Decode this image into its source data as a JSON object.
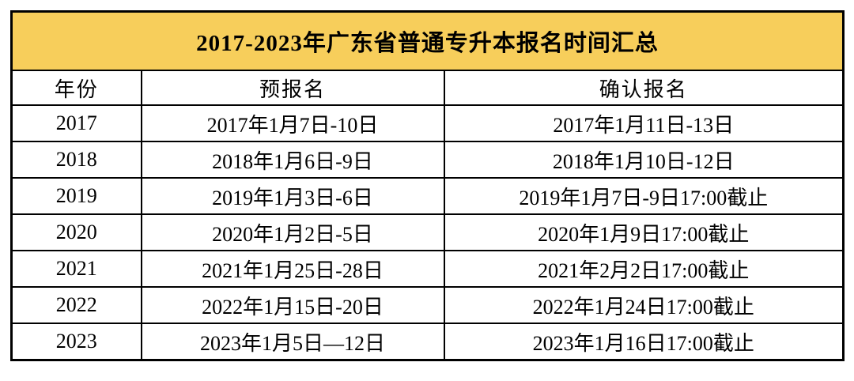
{
  "title": "2017-2023年广东省普通专升本报名时间汇总",
  "colors": {
    "title_background": "#F7CE5B",
    "border": "#000000",
    "text": "#000000",
    "page_background": "#FFFFFF"
  },
  "table": {
    "columns": [
      "年份",
      "预报名",
      "确认报名"
    ],
    "rows": [
      {
        "year": "2017",
        "pre": "2017年1月7日-10日",
        "confirm": "2017年1月11日-13日"
      },
      {
        "year": "2018",
        "pre": "2018年1月6日-9日",
        "confirm": "2018年1月10日-12日"
      },
      {
        "year": "2019",
        "pre": "2019年1月3日-6日",
        "confirm": "2019年1月7日-9日17:00截止"
      },
      {
        "year": "2020",
        "pre": "2020年1月2日-5日",
        "confirm": "2020年1月9日17:00截止"
      },
      {
        "year": "2021",
        "pre": "2021年1月25日-28日",
        "confirm": "2021年2月2日17:00截止"
      },
      {
        "year": "2022",
        "pre": "2022年1月15日-20日",
        "confirm": "2022年1月24日17:00截止"
      },
      {
        "year": "2023",
        "pre": "2023年1月5日—12日",
        "confirm": "2023年1月16日17:00截止"
      }
    ]
  },
  "chart_data": {
    "type": "table",
    "title": "2017-2023年广东省普通专升本报名时间汇总",
    "columns": [
      "年份",
      "预报名",
      "确认报名"
    ],
    "rows": [
      [
        "2017",
        "2017年1月7日-10日",
        "2017年1月11日-13日"
      ],
      [
        "2018",
        "2018年1月6日-9日",
        "2018年1月10日-12日"
      ],
      [
        "2019",
        "2019年1月3日-6日",
        "2019年1月7日-9日17:00截止"
      ],
      [
        "2020",
        "2020年1月2日-5日",
        "2020年1月9日17:00截止"
      ],
      [
        "2021",
        "2021年1月25日-28日",
        "2021年2月2日17:00截止"
      ],
      [
        "2022",
        "2022年1月15日-20日",
        "2022年1月24日17:00截止"
      ],
      [
        "2023",
        "2023年1月5日—12日",
        "2023年1月16日17:00截止"
      ]
    ],
    "layout_hints": {
      "title_row_background": "#F7CE5B",
      "grid": "on",
      "text_align": "center"
    }
  }
}
